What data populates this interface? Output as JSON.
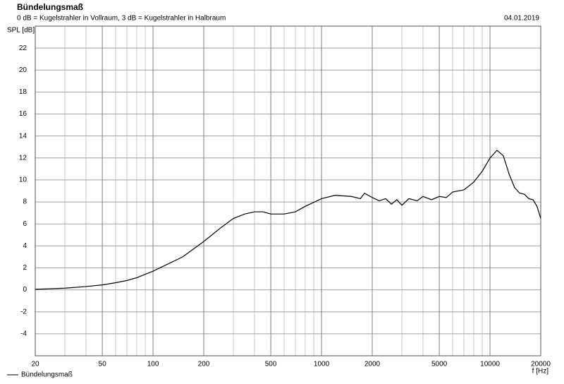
{
  "chart_data": {
    "type": "line",
    "title": "Bündelungsmaß",
    "subtitle": "0 dB = Kugelstrahler in Vollraum, 3 dB = Kugelstrahler in Halbraum",
    "date": "04.01.2019",
    "y_label": "SPL [dB]",
    "x_label": "f [Hz]",
    "x_scale": "log",
    "grid": true,
    "legend": "bottom-left",
    "xlim": [
      20,
      20000
    ],
    "xticks": [
      20,
      50,
      100,
      200,
      500,
      1000,
      2000,
      5000,
      10000,
      20000
    ],
    "x_minor_grid": [
      30,
      40,
      60,
      70,
      80,
      90,
      300,
      400,
      600,
      700,
      800,
      900,
      3000,
      4000,
      6000,
      7000,
      8000,
      9000
    ],
    "ylim": [
      -6,
      24
    ],
    "yticks": [
      -4,
      -2,
      0,
      2,
      4,
      6,
      8,
      10,
      12,
      14,
      16,
      18,
      20,
      22
    ],
    "x": [
      20,
      30,
      40,
      50,
      60,
      70,
      80,
      100,
      150,
      200,
      250,
      300,
      350,
      400,
      450,
      500,
      600,
      700,
      800,
      1000,
      1200,
      1500,
      1700,
      1800,
      2000,
      2200,
      2400,
      2600,
      2800,
      3000,
      3300,
      3700,
      4000,
      4500,
      5000,
      5500,
      6000,
      7000,
      8000,
      9000,
      10000,
      11000,
      12000,
      13000,
      14000,
      15000,
      16000,
      17000,
      18000,
      19000,
      20000
    ],
    "series": [
      {
        "name": "Bündelungsmaß",
        "color": "#000000",
        "values": [
          0.05,
          0.15,
          0.3,
          0.45,
          0.65,
          0.85,
          1.1,
          1.7,
          3.0,
          4.4,
          5.6,
          6.5,
          6.9,
          7.1,
          7.1,
          6.9,
          6.9,
          7.1,
          7.6,
          8.3,
          8.6,
          8.5,
          8.3,
          8.8,
          8.4,
          8.1,
          8.3,
          7.8,
          8.2,
          7.7,
          8.3,
          8.1,
          8.5,
          8.2,
          8.5,
          8.4,
          8.9,
          9.1,
          9.8,
          10.8,
          12.0,
          12.7,
          12.2,
          10.5,
          9.3,
          8.8,
          8.7,
          8.3,
          8.2,
          7.6,
          6.5
        ]
      }
    ]
  }
}
